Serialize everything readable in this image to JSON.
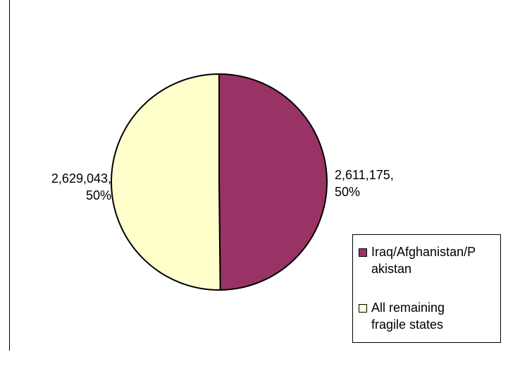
{
  "chart_data": {
    "type": "pie",
    "categories": [
      "Iraq/Afghanistan/Pakistan",
      "All remaining fragile states"
    ],
    "values": [
      2611175,
      2629043
    ],
    "percent": [
      50,
      50
    ],
    "colors": [
      "#993366",
      "#ffffcc"
    ],
    "title": "",
    "data_labels": [
      {
        "value": "2,611,175,",
        "percent": "50%"
      },
      {
        "value": "2,629,043,",
        "percent": "50%"
      }
    ],
    "legend": {
      "placement": "right",
      "entries": [
        {
          "line1": "Iraq/Afghanistan/P",
          "line2": "akistan"
        },
        {
          "line1": "All remaining",
          "line2": "fragile states"
        }
      ]
    }
  }
}
